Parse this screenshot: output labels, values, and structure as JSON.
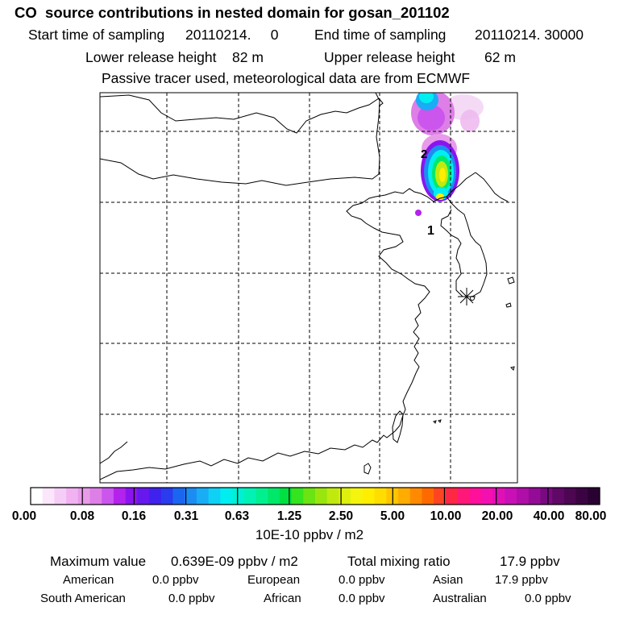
{
  "title": "CO  source contributions in nested domain for gosan_201102",
  "sampling": {
    "start_label": "Start time of sampling",
    "start_value": "20110214.     0",
    "end_label": "End time of sampling",
    "end_value": "20110214. 30000"
  },
  "release": {
    "lower_label": "Lower release height",
    "lower_value": "82 m",
    "upper_label": "Upper release height",
    "upper_value": "62 m"
  },
  "note": "Passive tracer used, meteorological data are from ECMWF",
  "map": {
    "markers": [
      {
        "id": "1",
        "label": "1"
      },
      {
        "id": "2",
        "label": "2"
      }
    ],
    "receptor_symbol": "star-icon"
  },
  "colorbar": {
    "labels": [
      "0.00",
      "0.08",
      "0.16",
      "0.31",
      "0.63",
      "1.25",
      "2.50",
      "5.00",
      "10.00",
      "20.00",
      "40.00",
      "80.00"
    ],
    "colors": [
      "#ffffff",
      "#fbe6fb",
      "#f6cdf6",
      "#f0b2f0",
      "#e89be9",
      "#dd7fe6",
      "#cc55ee",
      "#b422ee",
      "#8a14ee",
      "#6618ee",
      "#3f22ee",
      "#2a3cee",
      "#1b66f0",
      "#1c8cf3",
      "#18adf5",
      "#0fd0f5",
      "#00eef0",
      "#00f0d4",
      "#00f2b4",
      "#00f090",
      "#00e86a",
      "#00e040",
      "#33e41e",
      "#6ae412",
      "#99e60e",
      "#c0ea0e",
      "#dff00e",
      "#f4f40e",
      "#ffee00",
      "#ffdd00",
      "#ffc600",
      "#ffac00",
      "#ff8a00",
      "#ff6a00",
      "#ff4422",
      "#ff2844",
      "#ff1877",
      "#ff0f9a",
      "#f40fb0",
      "#e010b6",
      "#c810b6",
      "#b00ea8",
      "#940c96",
      "#780a80",
      "#600866",
      "#4c0652",
      "#3a0442",
      "#2a0232"
    ],
    "units": "10E-10 ppbv / m2"
  },
  "stats": {
    "max_label": "Maximum value",
    "max_value": "0.639E-09 ppbv / m2",
    "total_label": "Total mixing ratio",
    "total_value": "17.9 ppbv",
    "regions": [
      {
        "name": "American",
        "value": "0.0 ppbv"
      },
      {
        "name": "European",
        "value": "0.0 ppbv"
      },
      {
        "name": "Asian",
        "value": "17.9 ppbv"
      },
      {
        "name": "South American",
        "value": "0.0 ppbv"
      },
      {
        "name": "African",
        "value": "0.0 ppbv"
      },
      {
        "name": "Australian",
        "value": "0.0 ppbv"
      }
    ]
  }
}
